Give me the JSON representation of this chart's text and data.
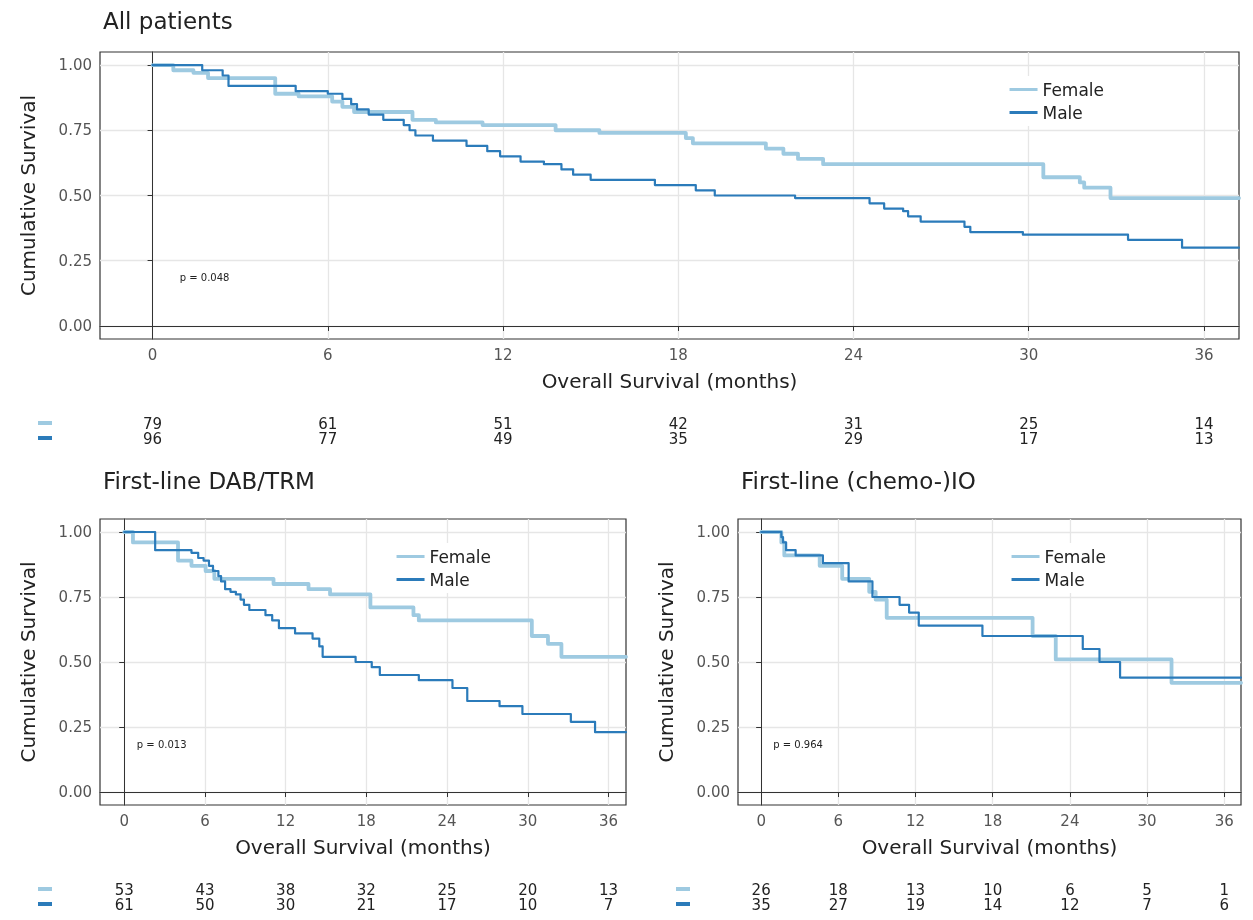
{
  "chart_data": [
    {
      "type": "step",
      "title": "All patients",
      "xlabel": "Overall Survival (months)",
      "ylabel": "Cumulative Survival",
      "grid": true,
      "legend": "top right",
      "xlim": [
        -1.8,
        37.2
      ],
      "xticks": [
        0,
        6,
        12,
        18,
        24,
        30,
        36
      ],
      "ylim": [
        -0.05,
        1.05
      ],
      "yticks": [
        {
          "value": 0,
          "label": "0.00"
        },
        {
          "value": 0.25,
          "label": "0.25"
        },
        {
          "value": 0.5,
          "label": "0.50"
        },
        {
          "value": 0.75,
          "label": "0.75"
        },
        {
          "value": 1,
          "label": "1.00"
        }
      ],
      "annotations": [
        "p = 0.048",
        "79",
        "61",
        "51",
        "42",
        "31",
        "25",
        "14",
        "96",
        "77",
        "49",
        "35",
        "29",
        "17",
        "13"
      ],
      "series": [
        {
          "name": "Female",
          "color": "#9ecae1",
          "x": [
            0,
            0.71,
            1.4,
            1.9,
            4.2,
            5.0,
            6.15,
            6.5,
            6.9,
            8.9,
            9.7,
            11.3,
            13.8,
            15.3,
            18.26,
            18.5,
            21.0,
            21.6,
            22.1,
            22.96,
            30.5,
            31.75,
            31.9,
            32.8,
            37.2
          ],
          "values": [
            1,
            0.98,
            0.97,
            0.95,
            0.89,
            0.88,
            0.86,
            0.84,
            0.82,
            0.79,
            0.78,
            0.77,
            0.75,
            0.74,
            0.72,
            0.7,
            0.68,
            0.66,
            0.64,
            0.62,
            0.57,
            0.55,
            0.53,
            0.49,
            0.49
          ]
        },
        {
          "name": "Male",
          "color": "#2b7bba",
          "x": [
            0,
            1.7,
            2.4,
            2.6,
            4.9,
            6.0,
            6.5,
            6.8,
            7.0,
            7.4,
            7.9,
            8.6,
            8.8,
            9.0,
            9.6,
            10.75,
            11.46,
            11.9,
            12.6,
            13.4,
            14.0,
            14.4,
            15.0,
            17.2,
            18.6,
            19.25,
            22.0,
            24.55,
            25.05,
            25.7,
            25.87,
            26.3,
            27.8,
            28.0,
            29.8,
            33.4,
            35.25,
            37.2
          ],
          "values": [
            1,
            0.98,
            0.96,
            0.92,
            0.9,
            0.89,
            0.87,
            0.85,
            0.83,
            0.81,
            0.79,
            0.77,
            0.75,
            0.73,
            0.71,
            0.69,
            0.67,
            0.65,
            0.63,
            0.62,
            0.6,
            0.58,
            0.56,
            0.54,
            0.52,
            0.5,
            0.49,
            0.47,
            0.45,
            0.44,
            0.42,
            0.4,
            0.38,
            0.36,
            0.35,
            0.33,
            0.3,
            0.3
          ]
        }
      ]
    },
    {
      "type": "step",
      "title": "First-line DAB/TRM",
      "xlabel": "Overall Survival (months)",
      "ylabel": "Cumulative Survival",
      "grid": true,
      "legend": "top right",
      "xlim": [
        -1.8,
        37.3
      ],
      "xticks": [
        0,
        6,
        12,
        18,
        24,
        30,
        36
      ],
      "ylim": [
        -0.05,
        1.05
      ],
      "yticks": [
        {
          "value": 0,
          "label": "0.00"
        },
        {
          "value": 0.25,
          "label": "0.25"
        },
        {
          "value": 0.5,
          "label": "0.50"
        },
        {
          "value": 0.75,
          "label": "0.75"
        },
        {
          "value": 1,
          "label": "1.00"
        }
      ],
      "annotations": [
        "p = 0.013",
        "53",
        "43",
        "38",
        "32",
        "25",
        "20",
        "13",
        "61",
        "50",
        "30",
        "21",
        "17",
        "10",
        "7"
      ],
      "series": [
        {
          "name": "Female",
          "color": "#9ecae1",
          "x": [
            0,
            0.65,
            4.0,
            5.0,
            6.05,
            6.7,
            11.1,
            13.7,
            15.3,
            18.3,
            21.5,
            21.9,
            30.3,
            31.5,
            32.5,
            37.3
          ],
          "values": [
            1,
            0.96,
            0.89,
            0.87,
            0.85,
            0.82,
            0.8,
            0.78,
            0.76,
            0.71,
            0.68,
            0.66,
            0.6,
            0.57,
            0.52,
            0.52
          ]
        },
        {
          "name": "Male",
          "color": "#2b7bba",
          "x": [
            0,
            2.3,
            5.0,
            5.5,
            5.9,
            6.3,
            6.6,
            7.0,
            7.2,
            7.5,
            7.9,
            8.3,
            8.65,
            8.9,
            9.3,
            10.5,
            11.0,
            11.5,
            12.7,
            14.0,
            14.5,
            14.75,
            17.2,
            18.4,
            19.0,
            21.9,
            24.4,
            25.5,
            27.9,
            29.6,
            33.2,
            35.0,
            37.3
          ],
          "values": [
            1,
            0.93,
            0.92,
            0.9,
            0.89,
            0.87,
            0.85,
            0.83,
            0.81,
            0.78,
            0.77,
            0.76,
            0.74,
            0.72,
            0.7,
            0.68,
            0.66,
            0.63,
            0.61,
            0.59,
            0.56,
            0.52,
            0.5,
            0.48,
            0.45,
            0.43,
            0.4,
            0.35,
            0.33,
            0.3,
            0.27,
            0.23,
            0.23
          ]
        }
      ]
    },
    {
      "type": "step",
      "title": "First-line (chemo-)IO",
      "xlabel": "Overall Survival (months)",
      "ylabel": "Cumulative Survival",
      "grid": true,
      "legend": "top right",
      "xlim": [
        -1.8,
        37.3
      ],
      "xticks": [
        0,
        6,
        12,
        18,
        24,
        30,
        36
      ],
      "ylim": [
        -0.05,
        1.05
      ],
      "yticks": [
        {
          "value": 0,
          "label": "0.00"
        },
        {
          "value": 0.25,
          "label": "0.25"
        },
        {
          "value": 0.5,
          "label": "0.50"
        },
        {
          "value": 0.75,
          "label": "0.75"
        },
        {
          "value": 1,
          "label": "1.00"
        }
      ],
      "annotations": [
        "p = 0.964",
        "26",
        "18",
        "13",
        "10",
        "6",
        "5",
        "1",
        "35",
        "27",
        "19",
        "14",
        "12",
        "7",
        "6"
      ],
      "series": [
        {
          "name": "Female",
          "color": "#9ecae1",
          "x": [
            0,
            1.57,
            1.8,
            4.55,
            6.3,
            8.4,
            8.9,
            9.76,
            21.1,
            22.9,
            31.9,
            37.3
          ],
          "values": [
            1,
            0.96,
            0.91,
            0.87,
            0.82,
            0.77,
            0.74,
            0.67,
            0.6,
            0.51,
            0.42,
            0.42
          ]
        },
        {
          "name": "Male",
          "color": "#2b7bba",
          "x": [
            0,
            1.57,
            1.7,
            1.94,
            2.68,
            4.8,
            6.8,
            8.65,
            10.76,
            11.5,
            12.25,
            17.2,
            25.0,
            26.3,
            27.9,
            37.3
          ],
          "values": [
            1,
            0.98,
            0.96,
            0.93,
            0.91,
            0.88,
            0.81,
            0.75,
            0.72,
            0.69,
            0.64,
            0.6,
            0.55,
            0.5,
            0.44,
            0.44
          ]
        }
      ]
    }
  ]
}
